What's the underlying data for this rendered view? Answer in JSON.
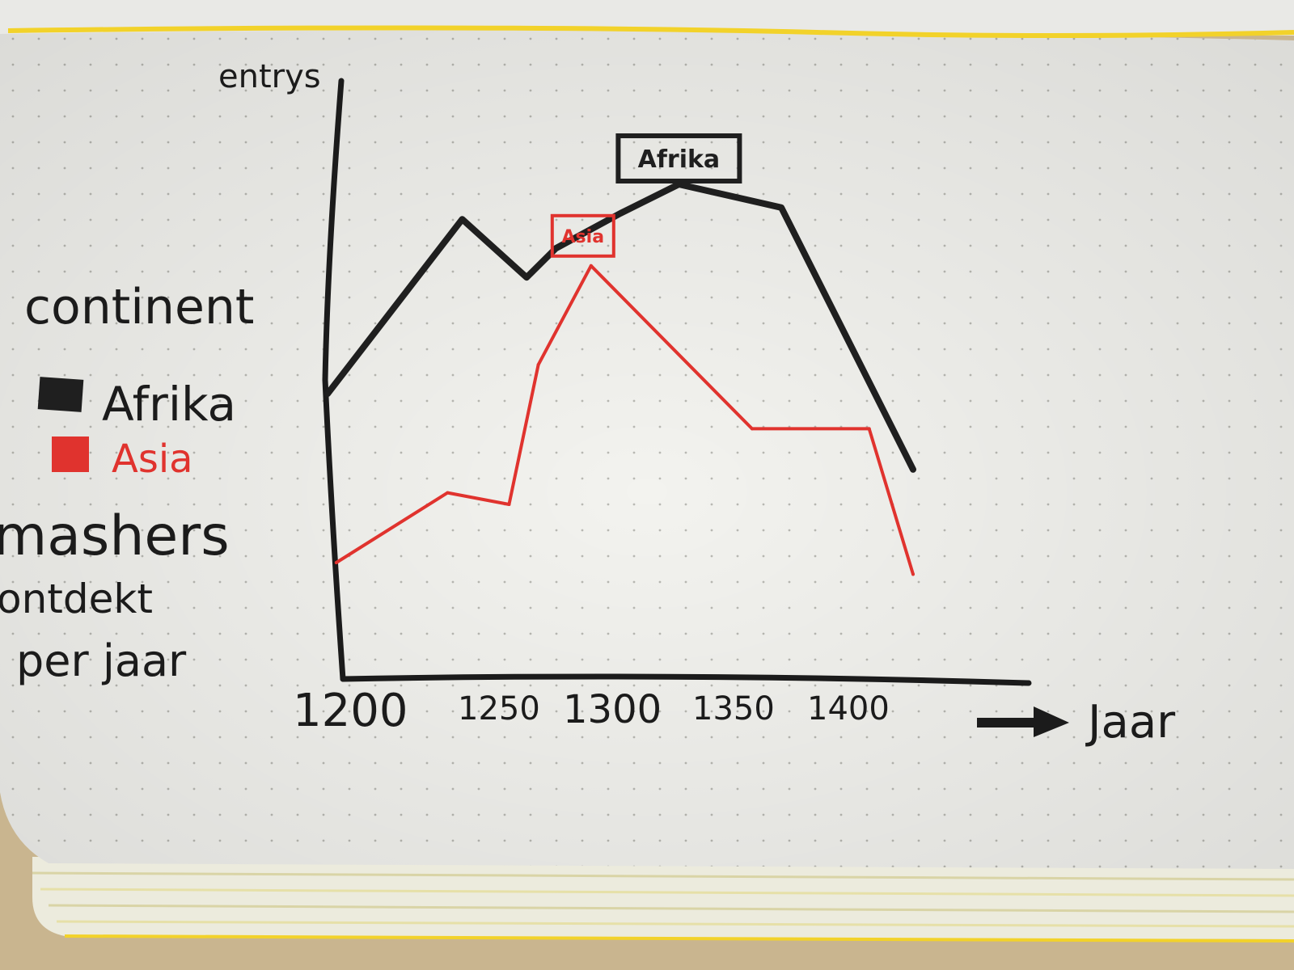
{
  "colors": {
    "afrika": "#1f1f1f",
    "asia": "#e0332e",
    "paper": "#f3f3ef",
    "dots": "#b9b9b3",
    "ribbon": "#f2d22a"
  },
  "legend": {
    "title": "continent",
    "items": [
      {
        "label": "Afrika",
        "color": "#1f1f1f"
      },
      {
        "label": "Asia",
        "color": "#e0332e"
      }
    ]
  },
  "side_note": [
    "mashers",
    "ontdekt",
    "per jaar"
  ],
  "chart_data": {
    "type": "line",
    "ylabel": "entrys",
    "xlabel": "Jaar",
    "x_ticks": [
      "1200",
      "1250",
      "1300",
      "1350",
      "1400"
    ],
    "xlim": [
      1200,
      1450
    ],
    "ylim": [
      0,
      100
    ],
    "series": [
      {
        "name": "Afrika",
        "color": "#1f1f1f",
        "annotation": "Afrika",
        "annotation_index": 5,
        "points": [
          {
            "x": 1200,
            "y": 49
          },
          {
            "x": 1246,
            "y": 79
          },
          {
            "x": 1268,
            "y": 69
          },
          {
            "x": 1278,
            "y": 74
          },
          {
            "x": 1300,
            "y": 80
          },
          {
            "x": 1320,
            "y": 85
          },
          {
            "x": 1355,
            "y": 81
          },
          {
            "x": 1400,
            "y": 36
          }
        ]
      },
      {
        "name": "Asia",
        "color": "#e0332e",
        "annotation": "Asia",
        "annotation_index": 4,
        "points": [
          {
            "x": 1203,
            "y": 20
          },
          {
            "x": 1241,
            "y": 32
          },
          {
            "x": 1262,
            "y": 30
          },
          {
            "x": 1272,
            "y": 54
          },
          {
            "x": 1290,
            "y": 71
          },
          {
            "x": 1345,
            "y": 43
          },
          {
            "x": 1385,
            "y": 43
          },
          {
            "x": 1400,
            "y": 18
          }
        ]
      }
    ]
  }
}
